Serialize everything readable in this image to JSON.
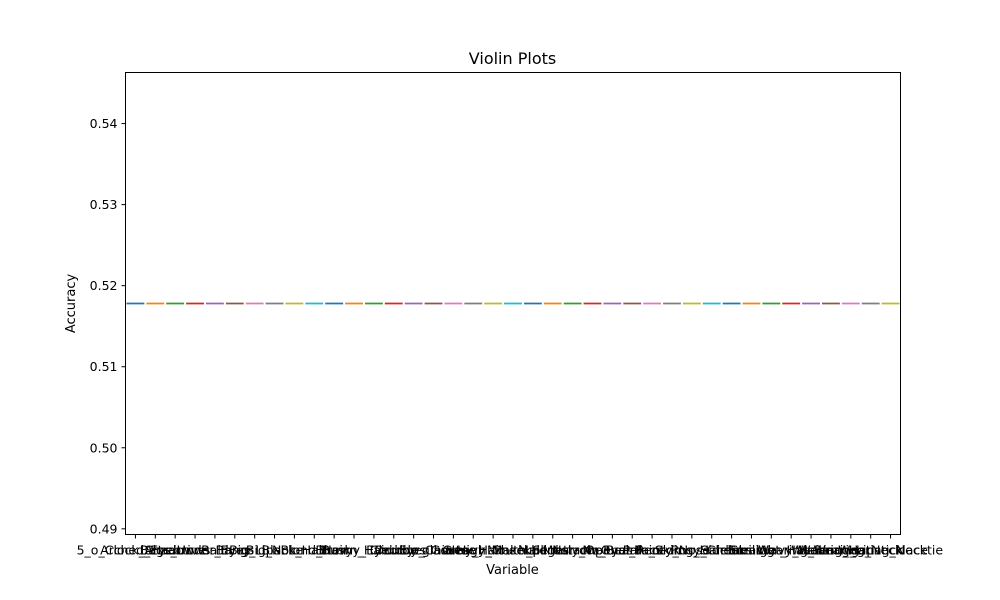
{
  "chart_data": {
    "type": "violin",
    "title": "Violin Plots",
    "xlabel": "Variable",
    "ylabel": "Accuracy",
    "ylim": [
      0.4893,
      0.5463
    ],
    "yticks": [
      "0.49",
      "0.50",
      "0.51",
      "0.52",
      "0.53",
      "0.54"
    ],
    "grid": false,
    "categories": [
      "5_o_Clock_Shadow",
      "Arched_Eyebrows",
      "Attractive",
      "Bags_Under_Eyes",
      "Bald",
      "Bangs",
      "Big_Lips",
      "Big_Nose",
      "Black_Hair",
      "Blond_Hair",
      "Blurry",
      "Brown_Hair",
      "Bushy_Eyebrows",
      "Chubby",
      "Double_Chin",
      "Eyeglasses",
      "Goatee",
      "Gray_Hair",
      "Heavy_Makeup",
      "High_Cheekbones",
      "Male",
      "Mouth_Slightly_Open",
      "Mustache",
      "Narrow_Eyes",
      "No_Beard",
      "Oval_Face",
      "Pale_Skin",
      "Pointy_Nose",
      "Receding_Hairline",
      "Rosy_Cheeks",
      "Sideburns",
      "Smiling",
      "Straight_Hair",
      "Wavy_Hair",
      "Wearing_Earrings",
      "Wearing_Hat",
      "Wearing_Lipstick",
      "Wearing_Necklace",
      "Wearing_Necktie"
    ],
    "values": [
      0.5178,
      0.5178,
      0.5178,
      0.5178,
      0.5178,
      0.5178,
      0.5178,
      0.5178,
      0.5178,
      0.5178,
      0.5178,
      0.5178,
      0.5178,
      0.5178,
      0.5178,
      0.5178,
      0.5178,
      0.5178,
      0.5178,
      0.5178,
      0.5178,
      0.5178,
      0.5178,
      0.5178,
      0.5178,
      0.5178,
      0.5178,
      0.5178,
      0.5178,
      0.5178,
      0.5178,
      0.5178,
      0.5178,
      0.5178,
      0.5178,
      0.5178,
      0.5178,
      0.5178,
      0.5178
    ],
    "colors": [
      "#1f77b4",
      "#ff7f0e",
      "#2ca02c",
      "#d62728",
      "#9467bd",
      "#8c564b",
      "#e377c2",
      "#7f7f7f",
      "#bcbd22",
      "#17becf"
    ]
  }
}
